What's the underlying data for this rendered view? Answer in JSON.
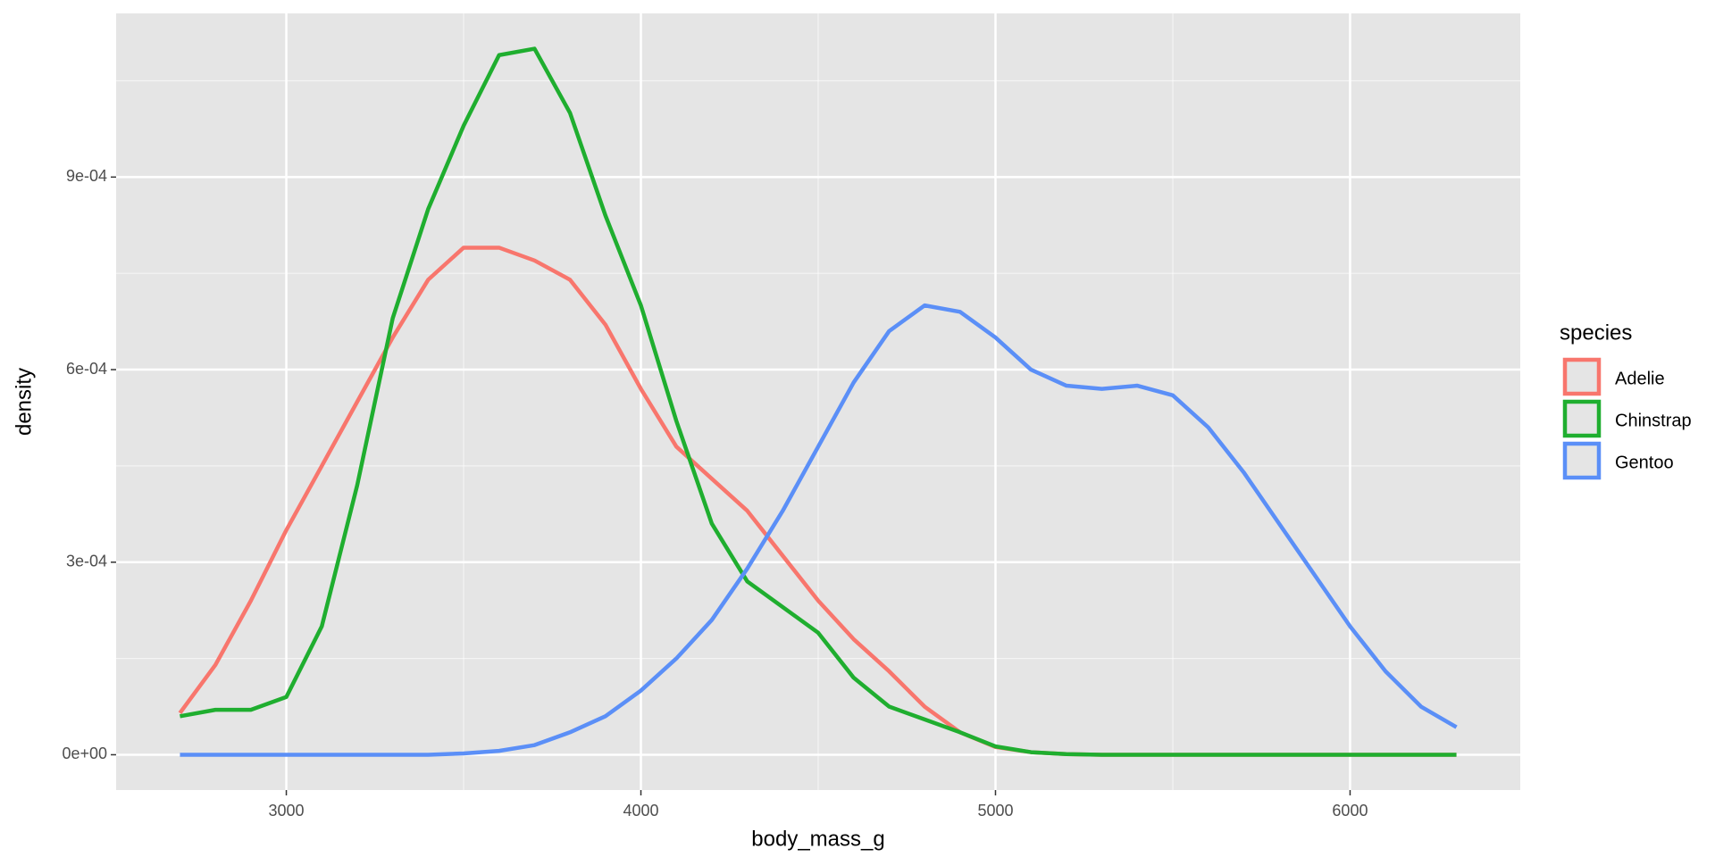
{
  "chart_data": {
    "type": "line",
    "xlabel": "body_mass_g",
    "ylabel": "density",
    "legend_title": "species",
    "legend_position": "right",
    "grid": true,
    "x": [
      2700,
      2800,
      2900,
      3000,
      3100,
      3200,
      3300,
      3400,
      3500,
      3600,
      3700,
      3800,
      3900,
      4000,
      4100,
      4200,
      4300,
      4400,
      4500,
      4600,
      4700,
      4800,
      4900,
      5000,
      5100,
      5200,
      5300,
      5400,
      5500,
      5600,
      5700,
      5800,
      5900,
      6000,
      6100,
      6200,
      6300
    ],
    "series": [
      {
        "name": "Adelie",
        "color": "#F8766D",
        "values": [
          6.5e-05,
          0.00014,
          0.00024,
          0.00035,
          0.00045,
          0.00055,
          0.00065,
          0.00074,
          0.00079,
          0.00079,
          0.00077,
          0.00074,
          0.00067,
          0.00057,
          0.00048,
          0.00043,
          0.00038,
          0.00031,
          0.00024,
          0.00018,
          0.00013,
          7.5e-05,
          3.5e-05,
          1.2e-05,
          4e-06,
          1e-06,
          0,
          0,
          0,
          0,
          0,
          0,
          0,
          0,
          0,
          0,
          0
        ]
      },
      {
        "name": "Chinstrap",
        "color": "#1FAE2F",
        "values": [
          6e-05,
          7e-05,
          7e-05,
          9e-05,
          0.0002,
          0.00042,
          0.00068,
          0.00085,
          0.00098,
          0.00109,
          0.0011,
          0.001,
          0.00084,
          0.0007,
          0.00052,
          0.00036,
          0.00027,
          0.00023,
          0.00019,
          0.00012,
          7.5e-05,
          5.5e-05,
          3.5e-05,
          1.3e-05,
          4e-06,
          1e-06,
          0,
          0,
          0,
          0,
          0,
          0,
          0,
          0,
          0,
          0,
          0
        ]
      },
      {
        "name": "Gentoo",
        "color": "#5B8FF7",
        "values": [
          0,
          0,
          0,
          0,
          0,
          0,
          0,
          0,
          2e-06,
          6e-06,
          1.5e-05,
          3.5e-05,
          6e-05,
          0.0001,
          0.00015,
          0.00021,
          0.00029,
          0.00038,
          0.00048,
          0.00058,
          0.00066,
          0.0007,
          0.00069,
          0.00065,
          0.0006,
          0.000575,
          0.00057,
          0.000575,
          0.00056,
          0.00051,
          0.00044,
          0.00036,
          0.00028,
          0.0002,
          0.00013,
          7.5e-05,
          4.3e-05
        ]
      }
    ],
    "xlim": [
      2520,
      6480
    ],
    "ylim": [
      -5.5e-05,
      0.001155
    ],
    "xticks": [
      3000,
      4000,
      5000,
      6000
    ],
    "yticks": [
      {
        "value": 0,
        "label": "0e+00"
      },
      {
        "value": 0.0003,
        "label": "3e-04"
      },
      {
        "value": 0.0006,
        "label": "6e-04"
      },
      {
        "value": 0.0009,
        "label": "9e-04"
      }
    ],
    "x_minor_ticks": [
      3500,
      4500,
      5500
    ],
    "y_minor_ticks": [
      0.00015,
      0.00045,
      0.00075,
      0.00105
    ]
  }
}
